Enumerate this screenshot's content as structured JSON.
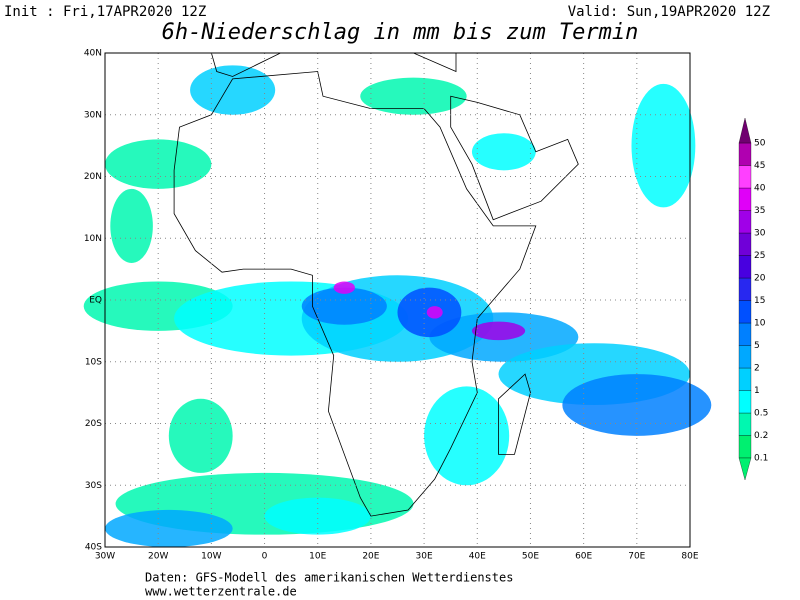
{
  "header": {
    "init": "Init : Fri,17APR2020 12Z",
    "valid": "Valid: Sun,19APR2020 12Z",
    "title": "6h-Niederschlag in mm bis zum Termin"
  },
  "map": {
    "lat_labels": [
      "40N",
      "30N",
      "20N",
      "10N",
      "EQ",
      "10S",
      "20S",
      "30S",
      "40S"
    ],
    "lon_labels": [
      "30W",
      "20W",
      "10W",
      "0",
      "10E",
      "20E",
      "30E",
      "40E",
      "50E",
      "60E",
      "70E",
      "80E"
    ]
  },
  "colorbar": {
    "levels": [
      0.1,
      0.2,
      0.5,
      1,
      2,
      5,
      10,
      15,
      20,
      25,
      30,
      35,
      40,
      45,
      50
    ],
    "colors": [
      "#00f070",
      "#00f8b0",
      "#00ffff",
      "#00d0ff",
      "#00a8ff",
      "#0080ff",
      "#0050ff",
      "#2828f0",
      "#4800e0",
      "#7000d8",
      "#a000e8",
      "#e000f8",
      "#ff40ff",
      "#b000b0",
      "#700070"
    ]
  },
  "footer": {
    "source": "Daten: GFS-Modell des amerikanischen Wetterdienstes",
    "site": "www.wetterzentrale.de"
  }
}
